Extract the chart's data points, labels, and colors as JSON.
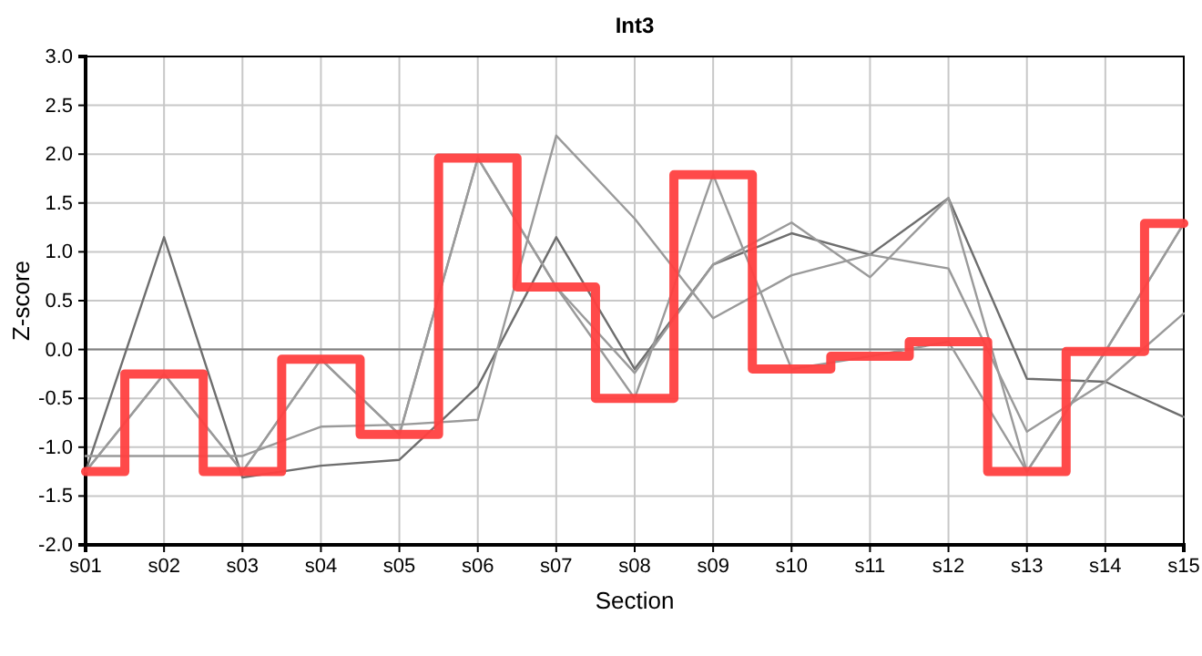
{
  "chart_data": {
    "type": "line",
    "title": "Int3",
    "xlabel": "Section",
    "ylabel": "Z-score",
    "categories": [
      "s01",
      "s02",
      "s03",
      "s04",
      "s05",
      "s06",
      "s07",
      "s08",
      "s09",
      "s10",
      "s11",
      "s12",
      "s13",
      "s14",
      "s15"
    ],
    "ylim": [
      -2,
      3
    ],
    "yticks": [
      {
        "value": -2,
        "label": "-2.0"
      },
      {
        "value": -1.5,
        "label": "-1.5"
      },
      {
        "value": -1,
        "label": "-1.0"
      },
      {
        "value": -0.5,
        "label": "-0.5"
      },
      {
        "value": 0,
        "label": "0.0"
      },
      {
        "value": 0.5,
        "label": "0.5"
      },
      {
        "value": 1,
        "label": "1.0"
      },
      {
        "value": 1.5,
        "label": "1.5"
      },
      {
        "value": 2,
        "label": "2.0"
      },
      {
        "value": 2.5,
        "label": "2.5"
      },
      {
        "value": 3,
        "label": "3.0"
      }
    ],
    "grid": true,
    "ref_lines": [
      {
        "axis": "y",
        "value": 0,
        "color": "#808080"
      }
    ],
    "series": [
      {
        "color": "#6e6e6e",
        "values": [
          -1.25,
          1.15,
          -1.31,
          -1.19,
          -1.13,
          -0.38,
          1.15,
          -0.2,
          0.87,
          1.19,
          0.97,
          1.55,
          -0.3,
          -0.33,
          -0.69
        ]
      },
      {
        "color": "#9a9a9a",
        "values": [
          -1.09,
          -1.09,
          -1.09,
          -0.79,
          -0.77,
          -0.72,
          2.19,
          1.34,
          0.32,
          0.76,
          0.97,
          0.83,
          -0.84,
          -0.33,
          0.37
        ]
      },
      {
        "color": "#9a9a9a",
        "values": [
          -1.25,
          -0.25,
          -1.25,
          -0.1,
          -0.87,
          1.96,
          0.64,
          -0.24,
          0.87,
          1.3,
          0.74,
          1.55,
          -1.25,
          -0.02,
          1.29
        ]
      },
      {
        "color": "#9a9a9a",
        "values": [
          -1.25,
          -0.25,
          -1.25,
          -0.1,
          -0.87,
          1.96,
          0.64,
          -0.5,
          1.79,
          -0.2,
          -0.07,
          0.08,
          -1.25,
          -0.02,
          1.29
        ]
      },
      {
        "type": "step",
        "color": "#ff4040",
        "values": [
          -1.25,
          -0.25,
          -1.25,
          -0.1,
          -0.87,
          1.96,
          0.64,
          -0.5,
          1.79,
          -0.2,
          -0.07,
          0.08,
          -1.25,
          -0.02,
          1.29
        ]
      }
    ]
  }
}
